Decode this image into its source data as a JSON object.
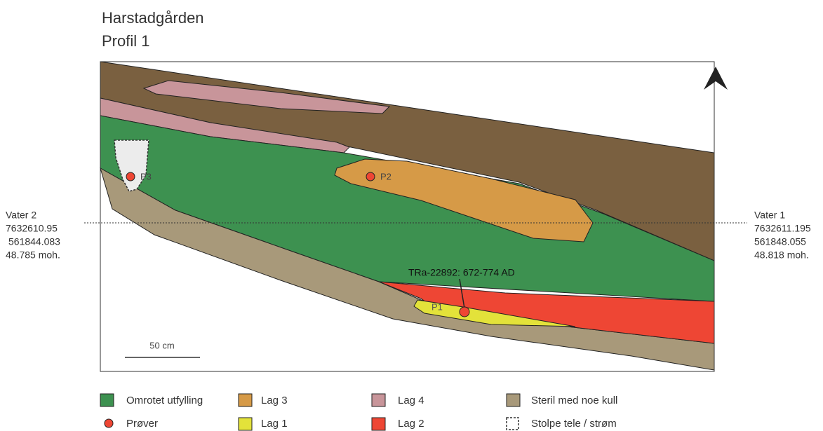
{
  "header": {
    "title": "Harstadgården",
    "subtitle": "Profil 1"
  },
  "left_point": {
    "name": "Vater 2",
    "north": "7632610.95",
    "east": "561844.083",
    "height": "48.785 moh."
  },
  "right_point": {
    "name": "Vater 1",
    "north": "7632611.195",
    "east": "561848.055",
    "height": "48.818 moh."
  },
  "samples": {
    "p1": "P1",
    "p2": "P2",
    "p3": "P3",
    "dating": "TRa-22892: 672-774 AD"
  },
  "scale": "50 cm",
  "legend": {
    "omrotet": "Omrotet utfylling",
    "lag3": "Lag 3",
    "lag4": "Lag 4",
    "steril": "Steril med noe kull",
    "prover": "Prøver",
    "lag1": "Lag 1",
    "lag2": "Lag 2",
    "stolpe": "Stolpe tele / strøm"
  }
}
